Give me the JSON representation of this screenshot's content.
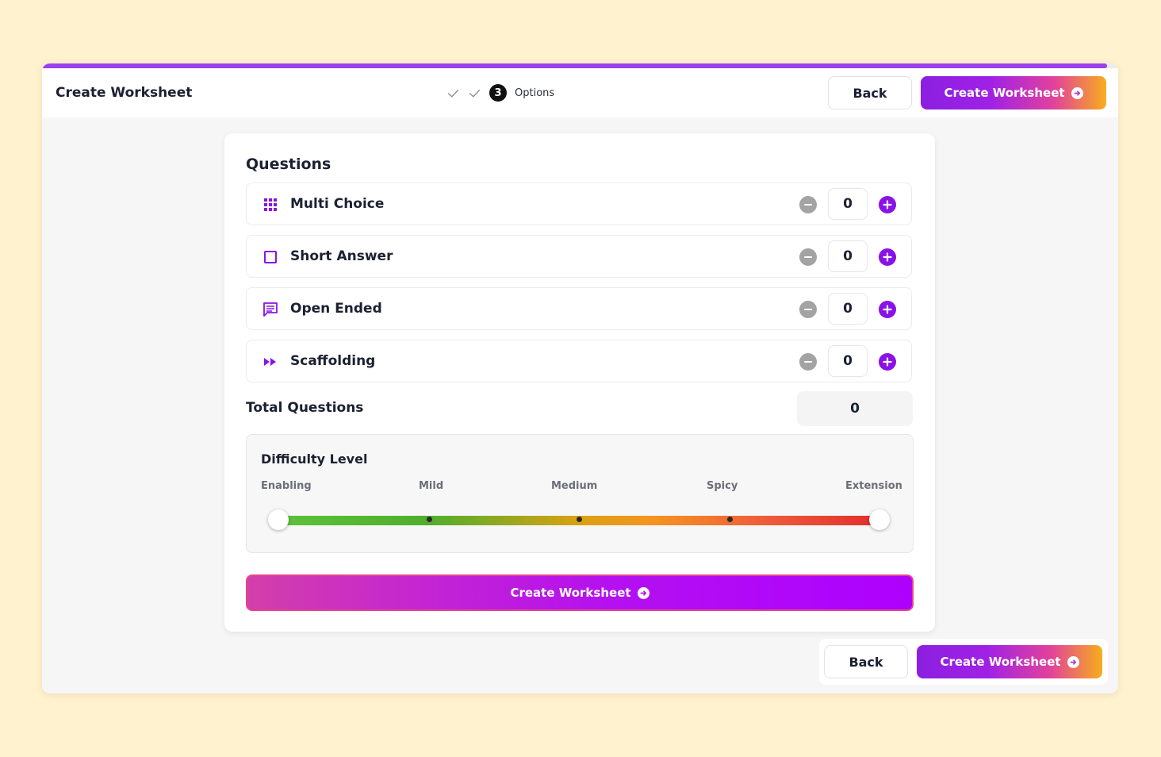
{
  "app": {
    "title": "Create Worksheet"
  },
  "stepper": {
    "current_step": "3",
    "current_label": "Options",
    "completed_steps": 2
  },
  "header": {
    "back_label": "Back",
    "create_label": "Create Worksheet"
  },
  "questions": {
    "heading": "Questions",
    "types": [
      {
        "label": "Multi Choice",
        "icon": "grid-dots-icon",
        "count": "0"
      },
      {
        "label": "Short Answer",
        "icon": "square-outline-icon",
        "count": "0"
      },
      {
        "label": "Open Ended",
        "icon": "chat-bubble-icon",
        "count": "0"
      },
      {
        "label": "Scaffolding",
        "icon": "fast-forward-icon",
        "count": "0"
      }
    ],
    "total_label": "Total Questions",
    "total_value": "0"
  },
  "difficulty": {
    "title": "Difficulty Level",
    "levels": [
      "Enabling",
      "Mild",
      "Medium",
      "Spicy",
      "Extension"
    ],
    "range": [
      "Enabling",
      "Extension"
    ]
  },
  "panel": {
    "create_label": "Create Worksheet"
  },
  "footer": {
    "back_label": "Back",
    "create_label": "Create Worksheet"
  },
  "colors": {
    "accent": "#8a12e6",
    "background": "#fff2cf"
  }
}
